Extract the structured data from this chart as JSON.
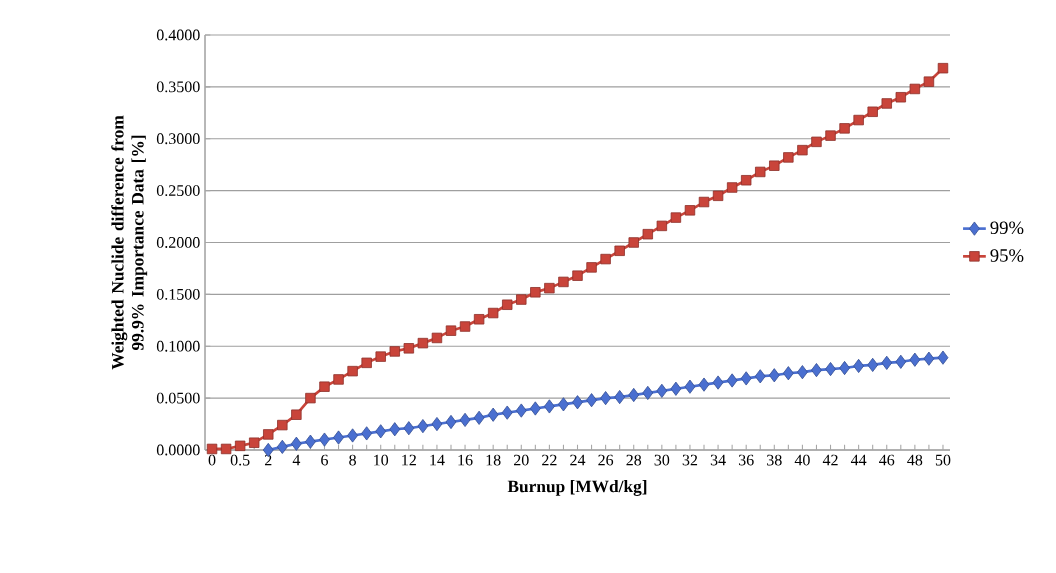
{
  "chart_data": {
    "type": "line",
    "xlabel": "Burnup [MWd/kg]",
    "ylabel": "Weighted Nuclide difference from 99.9% Importance Data [%]",
    "categories": [
      "0",
      null,
      "0.5",
      null,
      "2",
      null,
      "4",
      null,
      "6",
      null,
      "8",
      null,
      "10",
      null,
      "12",
      null,
      "14",
      null,
      "16",
      null,
      "18",
      null,
      "20",
      null,
      "22",
      null,
      "24",
      null,
      "26",
      null,
      "28",
      null,
      "30",
      null,
      "32",
      null,
      "34",
      null,
      "36",
      null,
      "38",
      null,
      "40",
      null,
      "42",
      null,
      "44",
      null,
      "46",
      null,
      "48",
      null,
      "50"
    ],
    "series": [
      {
        "name": "99%",
        "color": "#4a6fd0",
        "marker": "diamond",
        "values": [
          null,
          null,
          null,
          null,
          0.0,
          0.003,
          0.006,
          0.008,
          0.01,
          0.012,
          0.014,
          0.016,
          0.018,
          0.02,
          0.021,
          0.023,
          0.025,
          0.027,
          0.029,
          0.031,
          0.034,
          0.036,
          0.038,
          0.04,
          0.042,
          0.044,
          0.046,
          0.048,
          0.05,
          0.051,
          0.053,
          0.055,
          0.057,
          0.059,
          0.061,
          0.063,
          0.065,
          0.067,
          0.069,
          0.071,
          0.072,
          0.074,
          0.075,
          0.077,
          0.078,
          0.079,
          0.081,
          0.082,
          0.084,
          0.085,
          0.087,
          0.088,
          0.089
        ]
      },
      {
        "name": "95%",
        "color": "#c9443a",
        "marker": "square",
        "values": [
          0.001,
          0.001,
          0.004,
          0.007,
          0.015,
          0.024,
          0.034,
          0.05,
          0.061,
          0.068,
          0.076,
          0.084,
          0.09,
          0.095,
          0.098,
          0.103,
          0.108,
          0.115,
          0.119,
          0.126,
          0.132,
          0.14,
          0.145,
          0.152,
          0.156,
          0.162,
          0.168,
          0.176,
          0.184,
          0.192,
          0.2,
          0.208,
          0.216,
          0.224,
          0.231,
          0.239,
          0.245,
          0.253,
          0.26,
          0.268,
          0.274,
          0.282,
          0.289,
          0.297,
          0.303,
          0.31,
          0.318,
          0.326,
          0.334,
          0.34,
          0.348,
          0.355,
          0.368
        ]
      }
    ],
    "ylim": [
      0,
      0.4
    ],
    "yticks": [
      {
        "value": 0,
        "label": "0.0000"
      },
      {
        "value": 0.05,
        "label": "0.0500"
      },
      {
        "value": 0.1,
        "label": "0.1000"
      },
      {
        "value": 0.15,
        "label": "0.1500"
      },
      {
        "value": 0.2,
        "label": "0.2000"
      },
      {
        "value": 0.25,
        "label": "0.2500"
      },
      {
        "value": 0.3,
        "label": "0.3000"
      },
      {
        "value": 0.35,
        "label": "0.3500"
      },
      {
        "value": 0.4,
        "label": "0.4000"
      }
    ],
    "grid": "y",
    "legend": "right",
    "line_style": "solid"
  }
}
